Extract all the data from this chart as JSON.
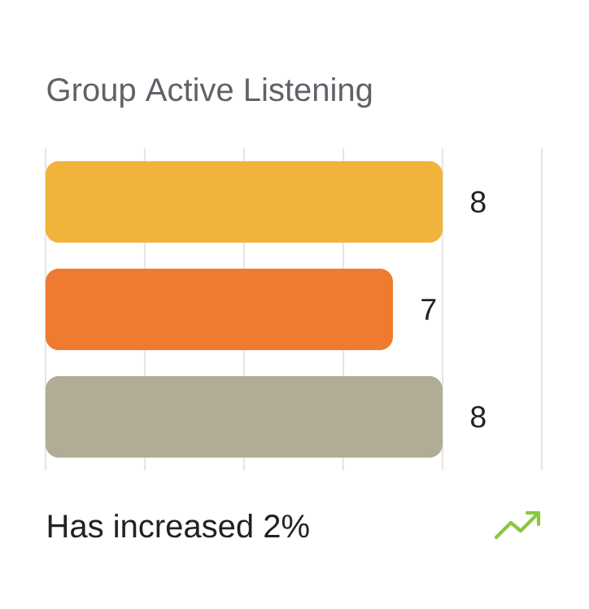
{
  "chart_data": {
    "type": "bar",
    "orientation": "horizontal",
    "title": "Group Active Listening",
    "categories": [
      null,
      null,
      null
    ],
    "values": [
      8,
      7,
      8
    ],
    "colors": [
      "#f2b33a",
      "#ee7b30",
      "#b1ac95"
    ],
    "data_labels": true,
    "xlim": [
      0,
      10
    ],
    "xticks": [
      {
        "value": 0,
        "label": null
      },
      {
        "value": 2,
        "label": null
      },
      {
        "value": 4,
        "label": null
      },
      {
        "value": 6,
        "label": null
      },
      {
        "value": 8,
        "label": null
      },
      {
        "value": 10,
        "label": null
      }
    ],
    "grid": "x",
    "annotations": [
      "Has increased 2%"
    ]
  }
}
